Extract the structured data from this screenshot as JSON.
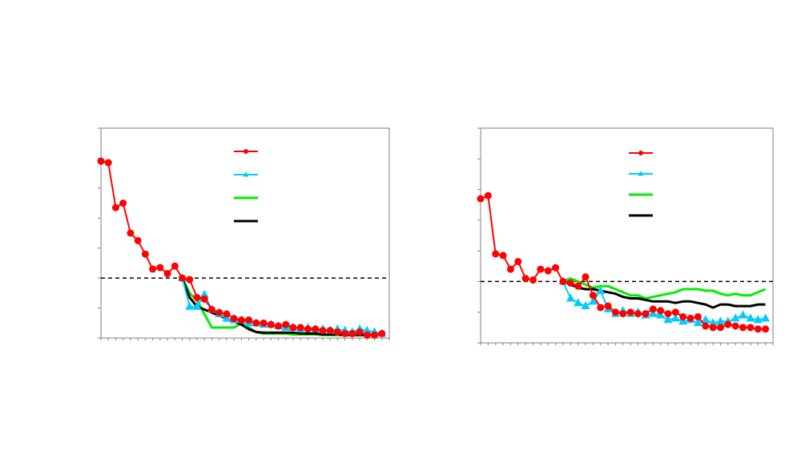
{
  "chart_data": [
    {
      "type": "line",
      "title": "",
      "xlabel": "",
      "ylabel": "",
      "xlim": [
        0,
        39
      ],
      "ylim": [
        0,
        7
      ],
      "reference_line_y": 2,
      "grid": false,
      "legend": "top-right",
      "series": [
        {
          "key": "red",
          "color": "#ff0000",
          "marker": "circle",
          "x": [
            0,
            1,
            2,
            3,
            4,
            5,
            6,
            7,
            8,
            9,
            10,
            11,
            12,
            13,
            14,
            15,
            16,
            17,
            18,
            19,
            20,
            21,
            22,
            23,
            24,
            25,
            26,
            27,
            28,
            29,
            30,
            31,
            32,
            33,
            34,
            35,
            36,
            37,
            38
          ],
          "y": [
            5.9,
            5.85,
            4.35,
            4.5,
            3.5,
            3.25,
            2.8,
            2.3,
            2.35,
            2.15,
            2.4,
            2.0,
            1.95,
            1.35,
            1.3,
            0.95,
            0.85,
            0.8,
            0.65,
            0.6,
            0.6,
            0.5,
            0.5,
            0.45,
            0.4,
            0.45,
            0.35,
            0.35,
            0.3,
            0.3,
            0.25,
            0.25,
            0.2,
            0.15,
            0.15,
            0.2,
            0.1,
            0.1,
            0.15
          ]
        },
        {
          "key": "cyan",
          "color": "#00ccff",
          "marker": "triangle",
          "x": [
            11,
            12,
            13,
            14,
            15,
            16,
            17,
            18,
            19,
            20,
            21,
            22,
            23,
            24,
            25,
            26,
            27,
            28,
            29,
            30,
            31,
            32,
            33,
            34,
            35,
            36,
            37,
            38
          ],
          "y": [
            2.0,
            1.05,
            1.05,
            1.45,
            0.95,
            0.8,
            0.65,
            0.6,
            0.6,
            0.5,
            0.5,
            0.45,
            0.45,
            0.4,
            0.35,
            0.35,
            0.3,
            0.35,
            0.3,
            0.3,
            0.25,
            0.3,
            0.25,
            0.2,
            0.3,
            0.25,
            0.2,
            0.15
          ]
        },
        {
          "key": "green",
          "color": "#00ee00",
          "marker": "none",
          "x": [
            11,
            12,
            13,
            14,
            15,
            16,
            17,
            18,
            19,
            20,
            21,
            22,
            23,
            24,
            25,
            26,
            27,
            28,
            29,
            30,
            31,
            32,
            33,
            34,
            35,
            36,
            37,
            38
          ],
          "y": [
            2.0,
            1.5,
            1.25,
            0.8,
            0.35,
            0.35,
            0.35,
            0.35,
            0.5,
            0.35,
            0.2,
            0.15,
            0.15,
            0.15,
            0.15,
            0.12,
            0.12,
            0.12,
            0.12,
            0.1,
            0.1,
            0.1,
            0.1,
            0.1,
            0.1,
            0.1,
            0.1,
            0.1
          ]
        },
        {
          "key": "black",
          "color": "#000000",
          "marker": "none",
          "x": [
            11,
            12,
            13,
            14,
            15,
            16,
            17,
            18,
            19,
            20,
            21,
            22,
            23,
            24,
            25,
            26,
            27,
            28,
            29,
            30,
            31,
            32,
            33,
            34,
            35,
            36,
            37,
            38
          ],
          "y": [
            2.0,
            1.35,
            1.05,
            0.95,
            0.85,
            0.75,
            0.65,
            0.55,
            0.45,
            0.3,
            0.2,
            0.18,
            0.18,
            0.18,
            0.18,
            0.18,
            0.15,
            0.15,
            0.15,
            0.12,
            0.12,
            0.12,
            0.1,
            0.1,
            0.1,
            0.1,
            0.1,
            0.1
          ]
        }
      ]
    },
    {
      "type": "line",
      "title": "",
      "xlabel": "",
      "ylabel": "",
      "xlim": [
        0,
        39
      ],
      "ylim": [
        0,
        7
      ],
      "reference_line_y": 2,
      "grid": false,
      "legend": "top-right",
      "series": [
        {
          "key": "red",
          "color": "#ff0000",
          "marker": "circle",
          "x": [
            0,
            1,
            2,
            3,
            4,
            5,
            6,
            7,
            8,
            9,
            10,
            11,
            12,
            13,
            14,
            15,
            16,
            17,
            18,
            19,
            20,
            21,
            22,
            23,
            24,
            25,
            26,
            27,
            28,
            29,
            30,
            31,
            32,
            33,
            34,
            35,
            36,
            37,
            38
          ],
          "y": [
            4.7,
            4.8,
            2.9,
            2.85,
            2.4,
            2.65,
            2.1,
            2.05,
            2.4,
            2.35,
            2.45,
            2.0,
            1.95,
            1.85,
            2.15,
            1.55,
            1.15,
            1.2,
            1.0,
            0.95,
            1.0,
            0.95,
            0.95,
            1.1,
            1.05,
            0.95,
            1.0,
            0.85,
            0.8,
            0.85,
            0.55,
            0.5,
            0.5,
            0.6,
            0.55,
            0.5,
            0.5,
            0.45,
            0.45
          ]
        },
        {
          "key": "cyan",
          "color": "#00ccff",
          "marker": "triangle",
          "x": [
            11,
            12,
            13,
            14,
            15,
            16,
            17,
            18,
            19,
            20,
            21,
            22,
            23,
            24,
            25,
            26,
            27,
            28,
            29,
            30,
            31,
            32,
            33,
            34,
            35,
            36,
            37,
            38
          ],
          "y": [
            2.0,
            1.45,
            1.3,
            1.2,
            1.35,
            1.7,
            1.1,
            0.95,
            1.05,
            0.95,
            1.0,
            0.9,
            0.95,
            0.9,
            0.75,
            0.8,
            0.7,
            0.75,
            0.65,
            0.75,
            0.65,
            0.7,
            0.7,
            0.8,
            0.9,
            0.8,
            0.75,
            0.8
          ]
        },
        {
          "key": "green",
          "color": "#00ee00",
          "marker": "none",
          "x": [
            11,
            12,
            13,
            14,
            15,
            16,
            17,
            18,
            19,
            20,
            21,
            22,
            23,
            24,
            25,
            26,
            27,
            28,
            29,
            30,
            31,
            32,
            33,
            34,
            35,
            36,
            37,
            38
          ],
          "y": [
            2.0,
            2.1,
            2.0,
            1.9,
            1.8,
            1.85,
            1.85,
            1.75,
            1.65,
            1.55,
            1.55,
            1.45,
            1.5,
            1.55,
            1.6,
            1.65,
            1.75,
            1.75,
            1.75,
            1.7,
            1.7,
            1.6,
            1.55,
            1.6,
            1.55,
            1.55,
            1.65,
            1.75
          ]
        },
        {
          "key": "black",
          "color": "#000000",
          "marker": "none",
          "x": [
            11,
            12,
            13,
            14,
            15,
            16,
            17,
            18,
            19,
            20,
            21,
            22,
            23,
            24,
            25,
            26,
            27,
            28,
            29,
            30,
            31,
            32,
            33,
            34,
            35,
            36,
            37,
            38
          ],
          "y": [
            2.0,
            1.9,
            1.8,
            1.75,
            1.75,
            1.7,
            1.65,
            1.6,
            1.5,
            1.45,
            1.45,
            1.4,
            1.35,
            1.35,
            1.35,
            1.3,
            1.35,
            1.35,
            1.3,
            1.25,
            1.15,
            1.25,
            1.25,
            1.2,
            1.2,
            1.2,
            1.25,
            1.25
          ]
        }
      ]
    }
  ]
}
